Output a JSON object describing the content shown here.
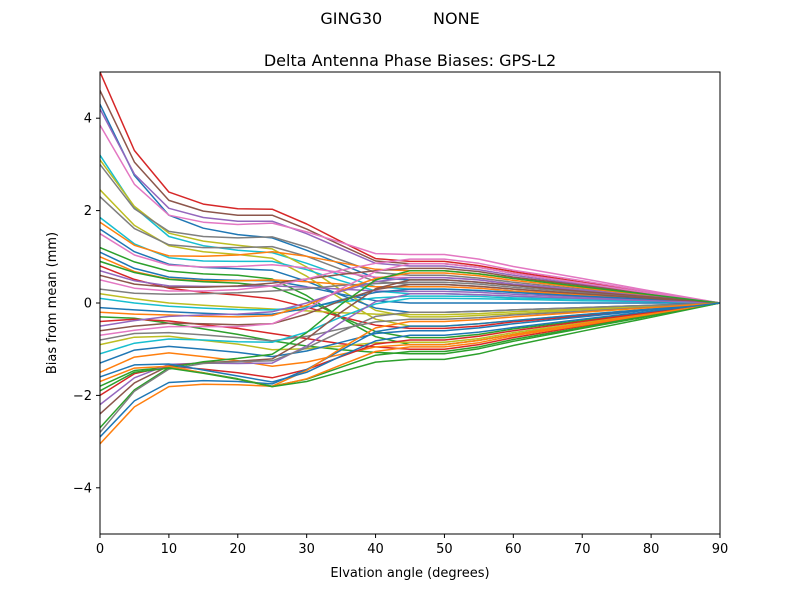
{
  "figure": {
    "suptitle": "GING30          NONE",
    "background": "#ffffff"
  },
  "chart_data": {
    "type": "line",
    "title": "Delta Antenna Phase Biases: GPS-L2",
    "suptitle": "GING30          NONE",
    "xlabel": "Elvation angle (degrees)",
    "ylabel": "Bias from mean (mm)",
    "xlim": [
      0,
      90
    ],
    "ylim": [
      -5,
      5
    ],
    "grid": false,
    "legend": "none",
    "xticks": [
      0,
      10,
      20,
      30,
      40,
      50,
      60,
      70,
      80,
      90
    ],
    "xtick_labels": [
      "0",
      "10",
      "20",
      "30",
      "40",
      "50",
      "60",
      "70",
      "80",
      "90"
    ],
    "yticks": [
      -4,
      -2,
      0,
      2,
      4
    ],
    "ytick_labels": [
      "−4",
      "−2",
      "0",
      "2",
      "4"
    ],
    "line_width": 1.5,
    "color_cycle": [
      "#1f77b4",
      "#ff7f0e",
      "#2ca02c",
      "#d62728",
      "#9467bd",
      "#8c564b",
      "#e377c2",
      "#7f7f7f",
      "#bcbd22",
      "#17becf"
    ],
    "x": [
      0,
      5,
      10,
      15,
      20,
      25,
      30,
      35,
      40,
      45,
      50,
      55,
      60,
      70,
      80,
      90
    ],
    "series": [
      {
        "color": "#d62728",
        "y": [
          5.0,
          3.3,
          2.4,
          2.14,
          2.04,
          2.03,
          1.71,
          1.33,
          0.96,
          0.9,
          0.9,
          0.81,
          0.68,
          0.45,
          0.23,
          0
        ]
      },
      {
        "color": "#8c564b",
        "y": [
          4.6,
          3.05,
          2.22,
          1.99,
          1.9,
          1.9,
          1.6,
          1.25,
          0.91,
          0.85,
          0.85,
          0.77,
          0.64,
          0.43,
          0.21,
          0
        ]
      },
      {
        "color": "#1f77b4",
        "y": [
          4.3,
          2.76,
          1.9,
          1.62,
          1.48,
          1.41,
          1.14,
          0.84,
          0.54,
          0.5,
          0.5,
          0.45,
          0.38,
          0.25,
          0.13,
          0
        ]
      },
      {
        "color": "#9467bd",
        "y": [
          4.2,
          2.79,
          2.05,
          1.85,
          1.77,
          1.77,
          1.5,
          1.18,
          0.86,
          0.8,
          0.8,
          0.72,
          0.6,
          0.4,
          0.2,
          0
        ]
      },
      {
        "color": "#e377c2",
        "y": [
          3.85,
          2.57,
          1.9,
          1.75,
          1.7,
          1.73,
          1.54,
          1.31,
          1.07,
          1.05,
          1.05,
          0.95,
          0.79,
          0.53,
          0.26,
          0
        ]
      },
      {
        "color": "#17becf",
        "y": [
          3.2,
          2.07,
          1.44,
          1.24,
          1.14,
          1.09,
          0.86,
          0.6,
          0.35,
          0.3,
          0.3,
          0.27,
          0.23,
          0.15,
          0.08,
          0
        ]
      },
      {
        "color": "#bcbd22",
        "y": [
          3.1,
          2.09,
          1.51,
          1.34,
          1.25,
          1.17,
          0.78,
          0.28,
          -0.16,
          -0.3,
          -0.3,
          -0.27,
          -0.23,
          -0.15,
          -0.08,
          0
        ]
      },
      {
        "color": "#7f7f7f",
        "y": [
          3.0,
          2.04,
          1.55,
          1.44,
          1.41,
          1.43,
          1.21,
          0.93,
          0.66,
          0.6,
          0.6,
          0.54,
          0.45,
          0.3,
          0.15,
          0
        ]
      },
      {
        "color": "#bcbd22",
        "y": [
          2.45,
          1.68,
          1.24,
          1.11,
          1.05,
          0.97,
          0.58,
          0.09,
          -0.35,
          -0.5,
          -0.5,
          -0.45,
          -0.38,
          -0.25,
          -0.13,
          0
        ]
      },
      {
        "color": "#7f7f7f",
        "y": [
          2.3,
          1.61,
          1.26,
          1.2,
          1.2,
          1.22,
          1.01,
          0.73,
          0.47,
          0.4,
          0.4,
          0.36,
          0.3,
          0.2,
          0.1,
          0
        ]
      },
      {
        "color": "#17becf",
        "y": [
          1.85,
          1.28,
          0.98,
          0.91,
          0.9,
          0.9,
          0.72,
          0.48,
          0.26,
          0.2,
          0.2,
          0.18,
          0.15,
          0.1,
          0.05,
          0
        ]
      },
      {
        "color": "#ff7f0e",
        "y": [
          1.75,
          1.25,
          1.02,
          1.01,
          1.04,
          1.11,
          1.01,
          0.87,
          0.73,
          0.7,
          0.7,
          0.63,
          0.53,
          0.35,
          0.18,
          0
        ]
      },
      {
        "color": "#1f77b4",
        "y": [
          1.6,
          1.11,
          0.84,
          0.77,
          0.74,
          0.71,
          0.47,
          0.17,
          -0.11,
          -0.2,
          -0.2,
          -0.18,
          -0.15,
          -0.1,
          -0.05,
          0
        ]
      },
      {
        "color": "#e377c2",
        "y": [
          1.5,
          1.04,
          0.82,
          0.78,
          0.79,
          0.83,
          0.76,
          0.66,
          0.56,
          0.55,
          0.55,
          0.5,
          0.41,
          0.28,
          0.14,
          0
        ]
      },
      {
        "color": "#2ca02c",
        "y": [
          1.2,
          0.89,
          0.69,
          0.63,
          0.6,
          0.52,
          0.16,
          -0.32,
          -0.73,
          -0.9,
          -0.9,
          -0.81,
          -0.68,
          -0.45,
          -0.23,
          0
        ]
      },
      {
        "color": "#1f77b4",
        "y": [
          1.1,
          0.75,
          0.56,
          0.51,
          0.49,
          0.48,
          0.35,
          0.19,
          0.05,
          0.0,
          0.0,
          0.0,
          0.0,
          0.0,
          0.0,
          0
        ]
      },
      {
        "color": "#ff7f0e",
        "y": [
          1.0,
          0.68,
          0.52,
          0.48,
          0.48,
          0.5,
          0.46,
          0.41,
          0.35,
          0.35,
          0.35,
          0.32,
          0.26,
          0.18,
          0.09,
          0
        ]
      },
      {
        "color": "#2ca02c",
        "y": [
          0.9,
          0.66,
          0.51,
          0.46,
          0.43,
          0.36,
          0.07,
          -0.3,
          -0.62,
          -0.75,
          -0.75,
          -0.68,
          -0.56,
          -0.38,
          -0.19,
          0
        ]
      },
      {
        "color": "#d62728",
        "y": [
          0.8,
          0.51,
          0.32,
          0.23,
          0.17,
          0.09,
          -0.09,
          -0.3,
          -0.48,
          -0.55,
          -0.55,
          -0.5,
          -0.41,
          -0.28,
          -0.14,
          0
        ]
      },
      {
        "color": "#9467bd",
        "y": [
          0.7,
          0.48,
          0.37,
          0.36,
          0.36,
          0.37,
          0.34,
          0.3,
          0.26,
          0.25,
          0.25,
          0.23,
          0.19,
          0.13,
          0.06,
          0
        ]
      },
      {
        "color": "#8c564b",
        "y": [
          0.6,
          0.41,
          0.34,
          0.34,
          0.37,
          0.43,
          0.52,
          0.62,
          0.7,
          0.75,
          0.75,
          0.68,
          0.56,
          0.38,
          0.19,
          0
        ]
      },
      {
        "color": "#e377c2",
        "y": [
          0.5,
          0.32,
          0.26,
          0.26,
          0.29,
          0.37,
          0.52,
          0.71,
          0.86,
          0.95,
          0.95,
          0.86,
          0.71,
          0.48,
          0.24,
          0
        ]
      },
      {
        "color": "#7f7f7f",
        "y": [
          0.3,
          0.21,
          0.19,
          0.2,
          0.22,
          0.26,
          0.31,
          0.38,
          0.42,
          0.45,
          0.45,
          0.41,
          0.34,
          0.23,
          0.11,
          0
        ]
      },
      {
        "color": "#bcbd22",
        "y": [
          0.2,
          0.09,
          0.0,
          -0.05,
          -0.09,
          -0.13,
          -0.17,
          -0.21,
          -0.24,
          -0.25,
          -0.25,
          -0.23,
          -0.19,
          -0.13,
          -0.06,
          0
        ]
      },
      {
        "color": "#17becf",
        "y": [
          0.1,
          0.0,
          -0.07,
          -0.11,
          -0.14,
          -0.15,
          -0.08,
          0.02,
          0.11,
          0.15,
          0.15,
          0.14,
          0.11,
          0.08,
          0.04,
          0
        ]
      },
      {
        "color": "#1f77b4",
        "y": [
          -0.1,
          -0.15,
          -0.19,
          -0.22,
          -0.25,
          -0.24,
          -0.12,
          0.07,
          0.23,
          0.3,
          0.3,
          0.27,
          0.23,
          0.15,
          0.08,
          0
        ]
      },
      {
        "color": "#ff7f0e",
        "y": [
          -0.2,
          -0.24,
          -0.26,
          -0.29,
          -0.3,
          -0.27,
          -0.05,
          0.27,
          0.53,
          0.65,
          0.65,
          0.59,
          0.49,
          0.33,
          0.16,
          0
        ]
      },
      {
        "color": "#2ca02c",
        "y": [
          -0.3,
          -0.33,
          -0.44,
          -0.56,
          -0.68,
          -0.82,
          -0.93,
          -1.01,
          -1.07,
          -1.1,
          -1.1,
          -0.99,
          -0.83,
          -0.55,
          -0.28,
          0
        ]
      },
      {
        "color": "#d62728",
        "y": [
          -0.4,
          -0.35,
          -0.39,
          -0.47,
          -0.55,
          -0.66,
          -0.77,
          -0.88,
          -0.95,
          -1.0,
          -1.0,
          -0.9,
          -0.75,
          -0.5,
          -0.25,
          0
        ]
      },
      {
        "color": "#9467bd",
        "y": [
          -0.5,
          -0.38,
          -0.29,
          -0.26,
          -0.24,
          -0.19,
          0.0,
          0.25,
          0.46,
          0.55,
          0.55,
          0.5,
          0.41,
          0.28,
          0.14,
          0
        ]
      },
      {
        "color": "#8c564b",
        "y": [
          -0.6,
          -0.5,
          -0.44,
          -0.45,
          -0.47,
          -0.45,
          -0.24,
          0.05,
          0.29,
          0.4,
          0.4,
          0.36,
          0.3,
          0.2,
          0.1,
          0
        ]
      },
      {
        "color": "#e377c2",
        "y": [
          -0.7,
          -0.59,
          -0.51,
          -0.51,
          -0.51,
          -0.45,
          -0.13,
          0.31,
          0.68,
          0.85,
          0.85,
          0.77,
          0.64,
          0.43,
          0.21,
          0
        ]
      },
      {
        "color": "#7f7f7f",
        "y": [
          -0.8,
          -0.66,
          -0.64,
          -0.69,
          -0.75,
          -0.82,
          -0.72,
          -0.56,
          -0.41,
          -0.35,
          -0.35,
          -0.32,
          -0.26,
          -0.18,
          -0.09,
          0
        ]
      },
      {
        "color": "#bcbd22",
        "y": [
          -0.9,
          -0.74,
          -0.72,
          -0.81,
          -0.89,
          -1.01,
          -0.99,
          -0.93,
          -0.86,
          -0.85,
          -0.85,
          -0.77,
          -0.64,
          -0.43,
          -0.21,
          0
        ]
      },
      {
        "color": "#17becf",
        "y": [
          -1.1,
          -0.87,
          -0.78,
          -0.8,
          -0.84,
          -0.85,
          -0.63,
          -0.3,
          -0.02,
          0.1,
          0.1,
          0.09,
          0.08,
          0.05,
          0.03,
          0
        ]
      },
      {
        "color": "#1f77b4",
        "y": [
          -1.3,
          -1.02,
          -0.94,
          -1.0,
          -1.07,
          -1.16,
          -1.04,
          -0.85,
          -0.66,
          -0.6,
          -0.6,
          -0.54,
          -0.45,
          -0.3,
          -0.15,
          0
        ]
      },
      {
        "color": "#ff7f0e",
        "y": [
          -1.5,
          -1.17,
          -1.08,
          -1.16,
          -1.25,
          -1.37,
          -1.28,
          -1.11,
          -0.95,
          -0.9,
          -0.9,
          -0.81,
          -0.68,
          -0.45,
          -0.23,
          0
        ]
      },
      {
        "color": "#2ca02c",
        "y": [
          -1.8,
          -1.46,
          -1.39,
          -1.51,
          -1.64,
          -1.8,
          -1.65,
          -1.39,
          -1.13,
          -1.05,
          -1.05,
          -0.95,
          -0.79,
          -0.53,
          -0.26,
          0
        ]
      },
      {
        "color": "#d62728",
        "y": [
          -2.0,
          -1.53,
          -1.37,
          -1.43,
          -1.51,
          -1.62,
          -1.44,
          -1.16,
          -0.89,
          -0.8,
          -0.8,
          -0.72,
          -0.6,
          -0.4,
          -0.2,
          0
        ]
      },
      {
        "color": "#9467bd",
        "y": [
          -2.2,
          -1.62,
          -1.33,
          -1.3,
          -1.31,
          -1.3,
          -0.93,
          -0.42,
          0.03,
          0.2,
          0.2,
          0.18,
          0.15,
          0.1,
          0.05,
          0
        ]
      },
      {
        "color": "#8c564b",
        "y": [
          -2.4,
          -1.73,
          -1.36,
          -1.29,
          -1.26,
          -1.21,
          -0.78,
          -0.2,
          0.31,
          0.5,
          0.5,
          0.45,
          0.38,
          0.25,
          0.13,
          0
        ]
      },
      {
        "color": "#2ca02c",
        "y": [
          -2.7,
          -1.88,
          -1.4,
          -1.27,
          -1.2,
          -1.11,
          -0.64,
          -0.03,
          0.5,
          0.7,
          0.7,
          0.63,
          0.53,
          0.35,
          0.18,
          0
        ]
      },
      {
        "color": "#7f7f7f",
        "y": [
          -2.8,
          -1.91,
          -1.43,
          -1.31,
          -1.27,
          -1.25,
          -0.97,
          -0.62,
          -0.29,
          -0.2,
          -0.2,
          -0.18,
          -0.15,
          -0.1,
          -0.05,
          0
        ]
      },
      {
        "color": "#1f77b4",
        "y": [
          -2.9,
          -2.12,
          -1.72,
          -1.68,
          -1.7,
          -1.75,
          -1.44,
          -1.02,
          -0.62,
          -0.5,
          -0.5,
          -0.45,
          -0.38,
          -0.25,
          -0.13,
          0
        ]
      },
      {
        "color": "#ff7f0e",
        "y": [
          -3.05,
          -2.25,
          -1.81,
          -1.76,
          -1.77,
          -1.8,
          -1.46,
          -0.98,
          -0.54,
          -0.4,
          -0.4,
          -0.36,
          -0.3,
          -0.2,
          -0.1,
          0
        ]
      },
      {
        "color": "#ff7f0e",
        "y": [
          -1.7,
          -1.41,
          -1.37,
          -1.51,
          -1.65,
          -1.81,
          -1.64,
          -1.34,
          -1.05,
          -0.95,
          -0.95,
          -0.86,
          -0.71,
          -0.48,
          -0.24,
          0
        ]
      },
      {
        "color": "#2ca02c",
        "y": [
          -1.9,
          -1.5,
          -1.41,
          -1.52,
          -1.65,
          -1.81,
          -1.7,
          -1.49,
          -1.28,
          -1.22,
          -1.22,
          -1.1,
          -0.92,
          -0.61,
          -0.31,
          0
        ]
      },
      {
        "color": "#1f77b4",
        "y": [
          -1.6,
          -1.34,
          -1.32,
          -1.45,
          -1.58,
          -1.71,
          -1.5,
          -1.15,
          -0.82,
          -0.7,
          -0.7,
          -0.63,
          -0.53,
          -0.35,
          -0.18,
          0
        ]
      }
    ]
  }
}
